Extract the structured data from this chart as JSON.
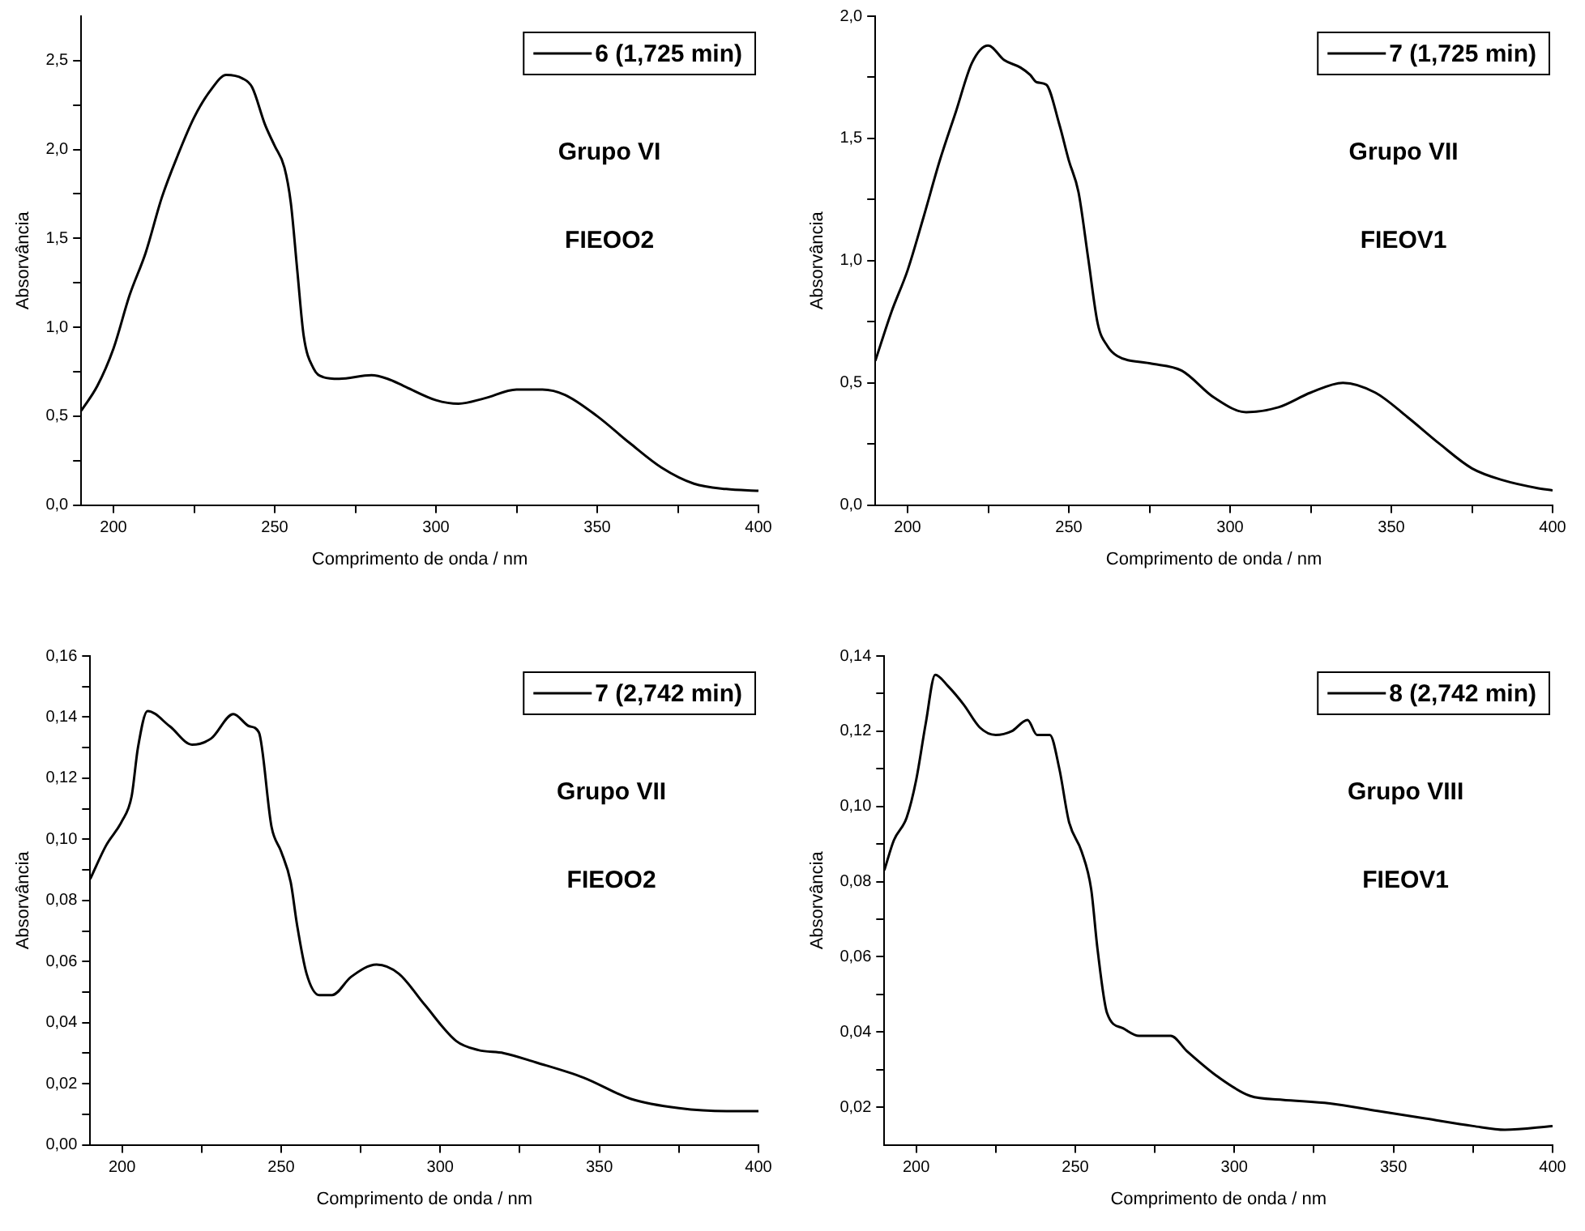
{
  "chart_data": [
    {
      "type": "line",
      "xlabel": "Comprimento de onda / nm",
      "ylabel": "Absorvância",
      "annotations": [
        "Grupo VI",
        "FIEOO2"
      ],
      "legend": "top right",
      "grid": false,
      "marker": "none",
      "line_style": "solid",
      "xlim": [
        190,
        400
      ],
      "xticks": [
        200,
        {
          "value": 225,
          "label": null
        },
        250,
        {
          "value": 275,
          "label": null
        },
        300,
        {
          "value": 325,
          "label": null
        },
        350,
        {
          "value": 375,
          "label": null
        },
        400
      ],
      "ylim": [
        0,
        2.75
      ],
      "yticks": [
        {
          "value": 0,
          "label": "0,0"
        },
        {
          "value": 0.25,
          "label": null
        },
        {
          "value": 0.5,
          "label": "0,5"
        },
        {
          "value": 0.75,
          "label": null
        },
        {
          "value": 1,
          "label": "1,0"
        },
        {
          "value": 1.25,
          "label": null
        },
        {
          "value": 1.5,
          "label": "1,5"
        },
        {
          "value": 1.75,
          "label": null
        },
        {
          "value": 2,
          "label": "2,0"
        },
        {
          "value": 2.25,
          "label": null
        },
        {
          "value": 2.5,
          "label": "2,5"
        }
      ],
      "series": [
        {
          "name": "6 (1,725 min)",
          "color": "#000000",
          "x": [
            190,
            195,
            200,
            205,
            210,
            215,
            220,
            225,
            230,
            235,
            240,
            243,
            247,
            250,
            253,
            255,
            257,
            259,
            262,
            265,
            270,
            280,
            285,
            290,
            300,
            307,
            315,
            325,
            333,
            340,
            350,
            360,
            370,
            380,
            390,
            400
          ],
          "values": [
            0.53,
            0.67,
            0.88,
            1.18,
            1.42,
            1.73,
            1.97,
            2.18,
            2.33,
            2.42,
            2.4,
            2.35,
            2.14,
            2.02,
            1.9,
            1.7,
            1.32,
            0.95,
            0.77,
            0.72,
            0.71,
            0.73,
            0.71,
            0.67,
            0.59,
            0.57,
            0.6,
            0.65,
            0.65,
            0.62,
            0.5,
            0.35,
            0.21,
            0.12,
            0.09,
            0.08
          ]
        }
      ]
    },
    {
      "type": "line",
      "xlabel": "Comprimento de onda / nm",
      "ylabel": "Absorvância",
      "annotations": [
        "Grupo VII",
        "FIEOV1"
      ],
      "legend": "top right",
      "grid": false,
      "marker": "none",
      "line_style": "solid",
      "xlim": [
        190,
        400
      ],
      "xticks": [
        200,
        {
          "value": 225,
          "label": null
        },
        250,
        {
          "value": 275,
          "label": null
        },
        300,
        {
          "value": 325,
          "label": null
        },
        350,
        {
          "value": 375,
          "label": null
        },
        400
      ],
      "ylim": [
        0,
        2
      ],
      "yticks": [
        {
          "value": 0,
          "label": "0,0"
        },
        {
          "value": 0.25,
          "label": null
        },
        {
          "value": 0.5,
          "label": "0,5"
        },
        {
          "value": 0.75,
          "label": null
        },
        {
          "value": 1,
          "label": "1,0"
        },
        {
          "value": 1.25,
          "label": null
        },
        {
          "value": 1.5,
          "label": "1,5"
        },
        {
          "value": 1.75,
          "label": null
        },
        {
          "value": 2,
          "label": "2,0"
        }
      ],
      "series": [
        {
          "name": "7 (1,725 min)",
          "color": "#000000",
          "x": [
            190,
            195,
            200,
            205,
            210,
            215,
            220,
            225,
            230,
            235,
            238,
            240,
            243,
            247,
            250,
            253,
            256,
            259,
            262,
            265,
            275,
            285,
            295,
            305,
            315,
            325,
            335,
            345,
            355,
            365,
            375,
            385,
            395,
            400
          ],
          "values": [
            0.59,
            0.79,
            0.96,
            1.18,
            1.41,
            1.61,
            1.81,
            1.88,
            1.82,
            1.79,
            1.76,
            1.73,
            1.72,
            1.56,
            1.41,
            1.28,
            1.01,
            0.74,
            0.65,
            0.61,
            0.58,
            0.55,
            0.44,
            0.38,
            0.4,
            0.46,
            0.5,
            0.46,
            0.36,
            0.25,
            0.15,
            0.1,
            0.07,
            0.06
          ]
        }
      ]
    },
    {
      "type": "line",
      "xlabel": "Comprimento de onda / nm",
      "ylabel": "Absorvância",
      "annotations": [
        "Grupo VII",
        "FIEOO2"
      ],
      "legend": "top right",
      "grid": false,
      "marker": "none",
      "line_style": "solid",
      "xlim": [
        190,
        400
      ],
      "xticks": [
        200,
        {
          "value": 225,
          "label": null
        },
        250,
        {
          "value": 275,
          "label": null
        },
        300,
        {
          "value": 325,
          "label": null
        },
        350,
        {
          "value": 375,
          "label": null
        },
        400
      ],
      "ylim": [
        0,
        0.16
      ],
      "yticks": [
        {
          "value": 0,
          "label": "0,00"
        },
        {
          "value": 0.01,
          "label": null
        },
        {
          "value": 0.02,
          "label": "0,02"
        },
        {
          "value": 0.03,
          "label": null
        },
        {
          "value": 0.04,
          "label": "0,04"
        },
        {
          "value": 0.05,
          "label": null
        },
        {
          "value": 0.06,
          "label": "0,06"
        },
        {
          "value": 0.07,
          "label": null
        },
        {
          "value": 0.08,
          "label": "0,08"
        },
        {
          "value": 0.09,
          "label": null
        },
        {
          "value": 0.1,
          "label": "0,10"
        },
        {
          "value": 0.11,
          "label": null
        },
        {
          "value": 0.12,
          "label": "0,12"
        },
        {
          "value": 0.13,
          "label": null
        },
        {
          "value": 0.14,
          "label": "0,14"
        },
        {
          "value": 0.15,
          "label": null
        },
        {
          "value": 0.16,
          "label": "0,16"
        }
      ],
      "series": [
        {
          "name": "7 (2,742 min)",
          "color": "#000000",
          "x": [
            190,
            195,
            200,
            203,
            205,
            208,
            215,
            222,
            228,
            235,
            240,
            243,
            247,
            250,
            253,
            255,
            258,
            262,
            266,
            272,
            280,
            287,
            295,
            305,
            312,
            320,
            330,
            345,
            360,
            375,
            390,
            400
          ],
          "values": [
            0.087,
            0.098,
            0.106,
            0.114,
            0.13,
            0.142,
            0.137,
            0.131,
            0.133,
            0.141,
            0.137,
            0.135,
            0.104,
            0.096,
            0.086,
            0.072,
            0.056,
            0.049,
            0.049,
            0.055,
            0.059,
            0.056,
            0.046,
            0.034,
            0.031,
            0.03,
            0.027,
            0.022,
            0.015,
            0.012,
            0.011,
            0.011
          ]
        }
      ]
    },
    {
      "type": "line",
      "xlabel": "Comprimento de onda / nm",
      "ylabel": "Absorvância",
      "annotations": [
        "Grupo VIII",
        "FIEOV1"
      ],
      "legend": "top right",
      "grid": false,
      "marker": "none",
      "line_style": "solid",
      "xlim": [
        190,
        400
      ],
      "xticks": [
        200,
        {
          "value": 225,
          "label": null
        },
        250,
        {
          "value": 275,
          "label": null
        },
        300,
        {
          "value": 325,
          "label": null
        },
        350,
        {
          "value": 375,
          "label": null
        },
        400
      ],
      "ylim": [
        0.01,
        0.14
      ],
      "yticks": [
        {
          "value": 0.02,
          "label": "0,02"
        },
        {
          "value": 0.03,
          "label": null
        },
        {
          "value": 0.04,
          "label": "0,04"
        },
        {
          "value": 0.05,
          "label": null
        },
        {
          "value": 0.06,
          "label": "0,06"
        },
        {
          "value": 0.07,
          "label": null
        },
        {
          "value": 0.08,
          "label": "0,08"
        },
        {
          "value": 0.09,
          "label": null
        },
        {
          "value": 0.1,
          "label": "0,10"
        },
        {
          "value": 0.11,
          "label": null
        },
        {
          "value": 0.12,
          "label": "0,12"
        },
        {
          "value": 0.13,
          "label": null
        },
        {
          "value": 0.14,
          "label": "0,14"
        }
      ],
      "series": [
        {
          "name": "8 (2,742 min)",
          "color": "#000000",
          "x": [
            190,
            193,
            197,
            200,
            203,
            206,
            210,
            215,
            220,
            225,
            230,
            235,
            238,
            242,
            245,
            248,
            252,
            255,
            257,
            260,
            265,
            270,
            280,
            285,
            295,
            305,
            315,
            330,
            345,
            360,
            375,
            385,
            400
          ],
          "values": [
            0.083,
            0.091,
            0.097,
            0.107,
            0.122,
            0.135,
            0.132,
            0.127,
            0.121,
            0.119,
            0.12,
            0.123,
            0.119,
            0.119,
            0.11,
            0.096,
            0.088,
            0.078,
            0.062,
            0.045,
            0.041,
            0.039,
            0.039,
            0.035,
            0.028,
            0.023,
            0.022,
            0.021,
            0.019,
            0.017,
            0.015,
            0.014,
            0.015
          ]
        }
      ]
    }
  ]
}
